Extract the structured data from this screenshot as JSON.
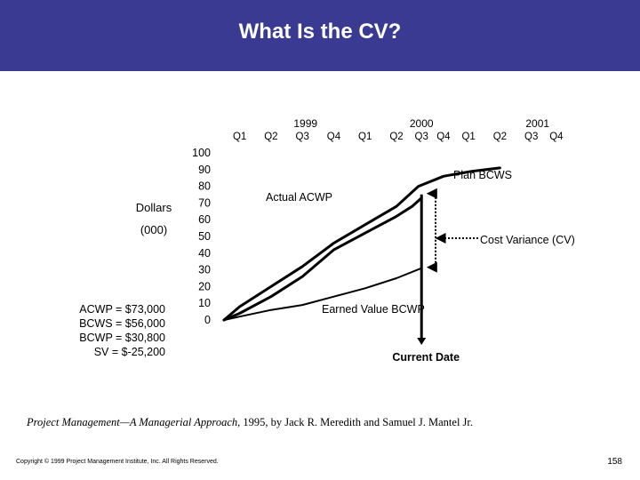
{
  "slide": {
    "title": "What Is the CV?",
    "page_number": "158",
    "copyright": "Copyright © 1999 Project Management Institute, Inc. All Rights Reserved.",
    "citation": {
      "title": "Project Management—A Managerial Approach,",
      "rest": " 1995, by Jack R. Meredith and Samuel J. Mantel Jr."
    },
    "summary": [
      {
        "text": "ACWP =  $73,000"
      },
      {
        "text": "BCWS =  $56,000"
      },
      {
        "text": "BCWP =  $30,800"
      },
      {
        "text": "SV = $-25,200"
      }
    ]
  },
  "chart_data": {
    "type": "line",
    "ylabel_line1": "Dollars",
    "ylabel_line2": "(000)",
    "ylim": [
      0,
      100
    ],
    "yticks": [
      0,
      10,
      20,
      30,
      40,
      50,
      60,
      70,
      80,
      90,
      100
    ],
    "years": [
      {
        "label": "1999",
        "x": 2.6
      },
      {
        "label": "2000",
        "x": 6.3
      },
      {
        "label": "2001",
        "x": 10.0
      }
    ],
    "quarters": [
      {
        "label": "Q1",
        "x": 0.5
      },
      {
        "label": "Q2",
        "x": 1.5
      },
      {
        "label": "Q3",
        "x": 2.5
      },
      {
        "label": "Q4",
        "x": 3.5
      },
      {
        "label": "Q1",
        "x": 4.5
      },
      {
        "label": "Q2",
        "x": 5.5
      },
      {
        "label": "Q3",
        "x": 6.3
      },
      {
        "label": "Q4",
        "x": 7.0
      },
      {
        "label": "Q1",
        "x": 7.8
      },
      {
        "label": "Q2",
        "x": 8.8
      },
      {
        "label": "Q3",
        "x": 9.8
      },
      {
        "label": "Q4",
        "x": 10.6
      }
    ],
    "xlim": [
      0,
      11
    ],
    "series": [
      {
        "name": "Plan BCWS",
        "x": [
          0,
          0.5,
          1.5,
          2.5,
          3.5,
          4.5,
          5.5,
          6.2,
          7.0,
          7.9,
          8.8
        ],
        "y": [
          0,
          8,
          20,
          32,
          46,
          57,
          68,
          80,
          86,
          89,
          91
        ]
      },
      {
        "name": "Actual ACWP",
        "x": [
          0,
          0.5,
          1.5,
          2.5,
          3.5,
          4.5,
          5.5,
          6.0,
          6.3
        ],
        "y": [
          0,
          4,
          14,
          26,
          42,
          52,
          62,
          68,
          73
        ]
      },
      {
        "name": "Earned Value BCWP",
        "x": [
          0,
          0.5,
          1.5,
          2.5,
          3.5,
          4.5,
          5.5,
          6.3
        ],
        "y": [
          0,
          2,
          6,
          9,
          14,
          19,
          25,
          31
        ]
      }
    ],
    "annotations": {
      "bcws_label": "Plan BCWS",
      "acwp_label": "Actual ACWP",
      "bcwp_label": "Earned Value BCWP",
      "cv_label": "Cost Variance (CV)",
      "current_date_label": "Current Date",
      "current_date_x": 6.3,
      "cv_upper_y": 73,
      "cv_lower_y": 31
    }
  }
}
